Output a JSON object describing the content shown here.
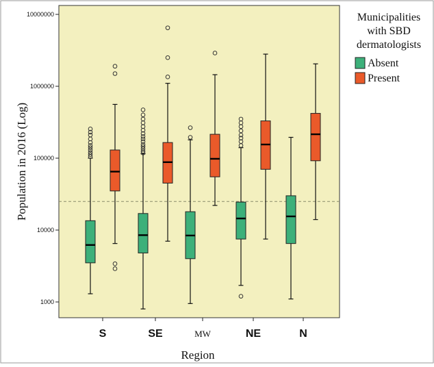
{
  "chart_data": {
    "type": "box",
    "ylabel": "Population in 2016 (Log)",
    "xlabel": "Region",
    "y_scale": "log",
    "ylim": [
      700,
      11000000
    ],
    "y_ticks": [
      1000,
      10000,
      100000,
      1000000,
      10000000
    ],
    "y_tick_labels": [
      "1000",
      "10000",
      "100000",
      "1000000",
      "10000000"
    ],
    "reference_line": 25000,
    "categories": [
      "S",
      "SE",
      "MW",
      "NE",
      "N"
    ],
    "legend": {
      "title": "Municipalities with SBD dermatologists",
      "title_lines": [
        "Municipalities",
        "with SBD",
        "dermatologists"
      ],
      "position": "top-right",
      "entries": [
        "Absent",
        "Present"
      ]
    },
    "series": [
      {
        "name": "Absent",
        "color": "#3db07a",
        "boxes": [
          {
            "category": "S",
            "whisker_low": 1300,
            "q1": 3500,
            "median": 6200,
            "q3": 13500,
            "whisker_high": 100000,
            "outliers": [
              105000,
              112000,
              120000,
              130000,
              140000,
              150000,
              165000,
              185000,
              210000,
              230000,
              255000
            ]
          },
          {
            "category": "SE",
            "whisker_low": 800,
            "q1": 4800,
            "median": 8500,
            "q3": 17000,
            "whisker_high": 115000,
            "outliers": [
              118000,
              125000,
              135000,
              145000,
              155000,
              170000,
              185000,
              200000,
              220000,
              245000,
              275000,
              310000,
              350000,
              400000,
              470000
            ]
          },
          {
            "category": "MW",
            "whisker_low": 950,
            "q1": 4000,
            "median": 8400,
            "q3": 18000,
            "whisker_high": 180000,
            "outliers": [
              195000,
              265000
            ]
          },
          {
            "category": "NE",
            "whisker_low": 1700,
            "q1": 7500,
            "median": 14500,
            "q3": 24500,
            "whisker_high": 140000,
            "outliers": [
              1200,
              150000,
              170000,
              190000,
              210000,
              240000,
              275000,
              310000,
              350000
            ]
          },
          {
            "category": "N",
            "whisker_low": 1100,
            "q1": 6500,
            "median": 15500,
            "q3": 30000,
            "whisker_high": 195000,
            "outliers": []
          }
        ]
      },
      {
        "name": "Present",
        "color": "#ea5a2a",
        "boxes": [
          {
            "category": "S",
            "whisker_low": 6500,
            "q1": 35000,
            "median": 65000,
            "q3": 130000,
            "whisker_high": 560000,
            "outliers": [
              2900,
              3400,
              1500000,
              1900000
            ]
          },
          {
            "category": "SE",
            "whisker_low": 7000,
            "q1": 45000,
            "median": 88000,
            "q3": 165000,
            "whisker_high": 1100000,
            "outliers": [
              1350000,
              2500000,
              6500000
            ]
          },
          {
            "category": "MW",
            "whisker_low": 22000,
            "q1": 55000,
            "median": 98000,
            "q3": 215000,
            "whisker_high": 1450000,
            "outliers": [
              2900000
            ]
          },
          {
            "category": "NE",
            "whisker_low": 7500,
            "q1": 70000,
            "median": 155000,
            "q3": 330000,
            "whisker_high": 2800000,
            "outliers": []
          },
          {
            "category": "N",
            "whisker_low": 14000,
            "q1": 92000,
            "median": 215000,
            "q3": 420000,
            "whisker_high": 2050000,
            "outliers": []
          }
        ]
      }
    ]
  }
}
